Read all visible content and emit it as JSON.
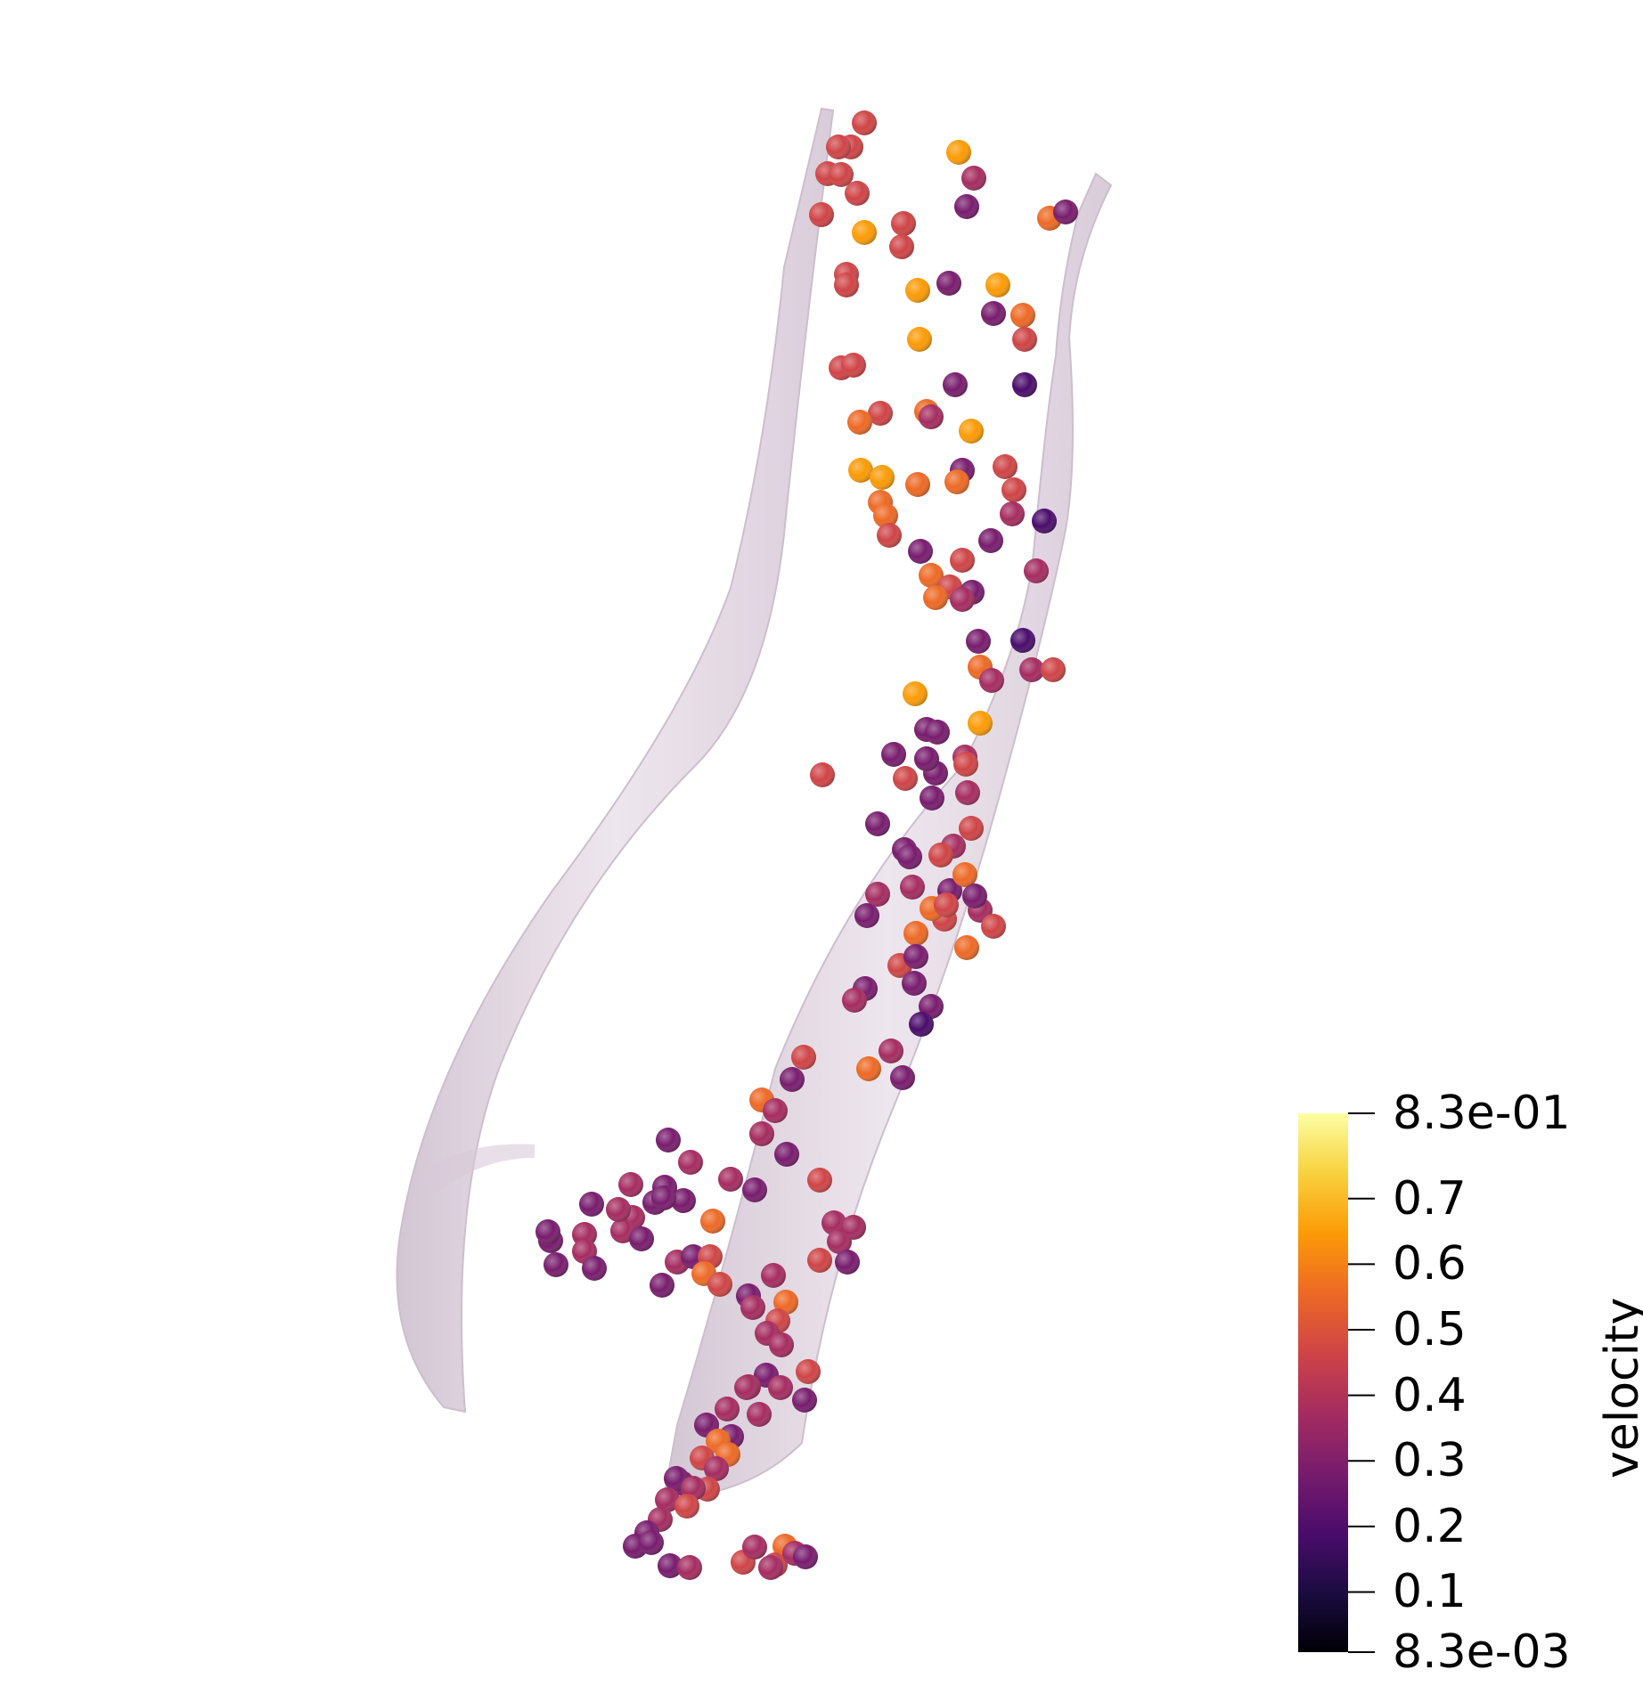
{
  "colorbar": {
    "title": "velocity",
    "min_label": "8.3e-03",
    "max_label": "8.3e-01",
    "min_value": 0.0083,
    "max_value": 0.83,
    "ticks": [
      {
        "value": 0.83,
        "label": "8.3e-01"
      },
      {
        "value": 0.7,
        "label": "0.7"
      },
      {
        "value": 0.6,
        "label": "0.6"
      },
      {
        "value": 0.5,
        "label": "0.5"
      },
      {
        "value": 0.4,
        "label": "0.4"
      },
      {
        "value": 0.3,
        "label": "0.3"
      },
      {
        "value": 0.2,
        "label": "0.2"
      },
      {
        "value": 0.1,
        "label": "0.1"
      },
      {
        "value": 0.0083,
        "label": "8.3e-03"
      }
    ],
    "colormap": "inferno",
    "stops": [
      "#000004",
      "#1b0c41",
      "#4a0c6b",
      "#781c6d",
      "#a52c60",
      "#cf4446",
      "#ed6925",
      "#fb9b06",
      "#f7d13d",
      "#fcffa4"
    ]
  },
  "tube": {
    "color": "#d8c9d8"
  }
}
